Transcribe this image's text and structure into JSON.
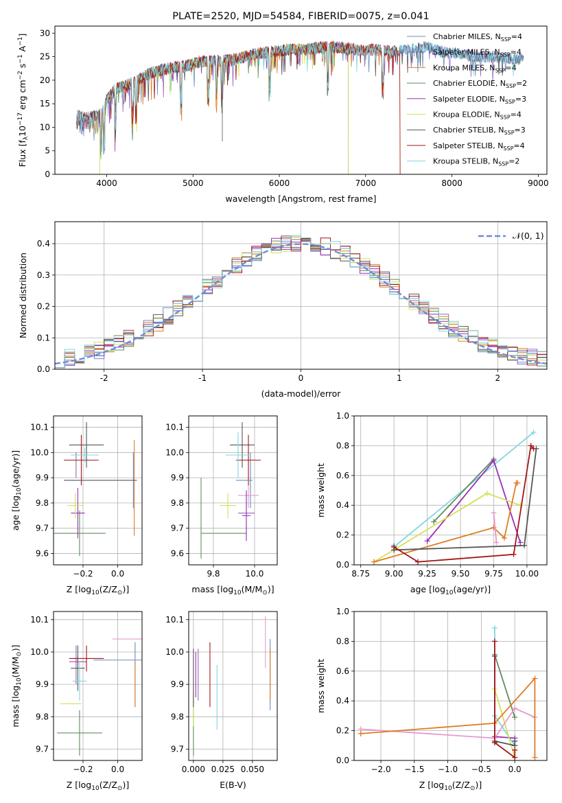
{
  "colors": [
    "#6b8cbf",
    "#9467bd",
    "#e07b22",
    "#5e8e5e",
    "#9a2fb5",
    "#d4e157",
    "#555555",
    "#a31515",
    "#7fd6e0"
  ],
  "chart_data": [
    {
      "id": "spectrum",
      "type": "line",
      "title": "PLATE=2520, MJD=54584, FIBERID=0075, z=0.041",
      "xlabel": "wavelength [Angstrom, rest frame]",
      "ylabel_parts": [
        "Flux [f",
        "λ",
        "10",
        "−17",
        " erg cm",
        "−2",
        " s",
        "−1",
        " A",
        "−1",
        "]"
      ],
      "xlim": [
        3400,
        9100
      ],
      "ylim": [
        0,
        31.5
      ],
      "xticks": [
        4000,
        5000,
        6000,
        7000,
        8000,
        9000
      ],
      "yticks": [
        0,
        5,
        10,
        15,
        20,
        25,
        30
      ],
      "grid": false,
      "legend_position": "top-right",
      "legend": [
        {
          "main": "Chabrier MILES, N",
          "sub": "SSP",
          "tail": "=4"
        },
        {
          "main": "Salpeter MILES, N",
          "sub": "SSP",
          "tail": "=4"
        },
        {
          "main": "Kroupa MILES, N",
          "sub": "SSP",
          "tail": "=4"
        },
        {
          "main": "Chabrier ELODIE, N",
          "sub": "SSP",
          "tail": "=2"
        },
        {
          "main": "Salpeter ELODIE, N",
          "sub": "SSP",
          "tail": "=3"
        },
        {
          "main": "Kroupa ELODIE, N",
          "sub": "SSP",
          "tail": "=4"
        },
        {
          "main": "Chabrier STELIB, N",
          "sub": "SSP",
          "tail": "=3"
        },
        {
          "main": "Salpeter STELIB, N",
          "sub": "SSP",
          "tail": "=4"
        },
        {
          "main": "Kroupa STELIB, N",
          "sub": "SSP",
          "tail": "=2"
        }
      ],
      "continuum_x": [
        3650,
        3800,
        3950,
        4000,
        4100,
        4300,
        4500,
        4700,
        4900,
        5100,
        5300,
        5500,
        5700,
        5900,
        6100,
        6300,
        6500,
        6700,
        6900,
        7100,
        7300,
        7500,
        7700,
        7900,
        8100,
        8300,
        8500,
        8700,
        8830
      ],
      "continuum_y": [
        12.5,
        12,
        13,
        16,
        18,
        19.5,
        21.5,
        22.5,
        23,
        24,
        24,
        24.5,
        25.5,
        26,
        26.5,
        26.5,
        27,
        27,
        26.5,
        26.5,
        26,
        26.5,
        27,
        26,
        25.5,
        25,
        25,
        24.5,
        24.5
      ],
      "series_ranges": [
        [
          3650,
          8830
        ],
        [
          3650,
          8830
        ],
        [
          3650,
          7400
        ],
        [
          3900,
          6800
        ],
        [
          3900,
          6800
        ],
        [
          3900,
          6800
        ],
        [
          3650,
          8830
        ],
        [
          3650,
          7400
        ],
        [
          3650,
          8830
        ]
      ]
    },
    {
      "id": "residuals",
      "type": "histogram",
      "xlabel": "(data-model)/error",
      "ylabel": "Normed distribution",
      "xlim": [
        -2.5,
        2.5
      ],
      "ylim": [
        0,
        0.47
      ],
      "xticks": [
        -2,
        -1,
        0,
        1,
        2
      ],
      "yticks": [
        0.0,
        0.1,
        0.2,
        0.3,
        0.4
      ],
      "grid": true,
      "legend_position": "top-right",
      "legend_label": "𝒩(0, 1)",
      "bin_width": 0.1,
      "bin_start": -2.5,
      "reference_curve": {
        "name": "𝒩(0, 1)",
        "mean": 0,
        "sigma": 1,
        "color": "#6b8cd6"
      }
    },
    {
      "id": "age-vs-Z",
      "type": "errorbar",
      "xlabel": "Z [log10(Z/Z⊙)]",
      "ylabel": "age  [log10(age/yr)]",
      "xlim": [
        -0.37,
        0.14
      ],
      "ylim": [
        9.555,
        10.145
      ],
      "xticks": [
        -0.2,
        0.0
      ],
      "xticklabels": [
        "−0.2",
        "0.0"
      ],
      "yticks": [
        9.6,
        9.7,
        9.8,
        9.9,
        10.0,
        10.1
      ],
      "grid": true,
      "points": [
        {
          "x": 0.09,
          "xerr": 0.0,
          "y": 9.89,
          "yerr": 0.11
        },
        {
          "x": -0.24,
          "xerr": 0.0,
          "y": 9.95,
          "yerr": 0.05
        },
        {
          "x": 0.095,
          "xerr": 0.0,
          "y": 9.86,
          "yerr": 0.19
        },
        {
          "x": -0.22,
          "xerr": 0.15,
          "y": 9.68,
          "yerr": 0.09
        },
        {
          "x": -0.23,
          "xerr": 0.04,
          "y": 9.76,
          "yerr": 0.1
        },
        {
          "x": -0.245,
          "xerr": 0.045,
          "y": 9.79,
          "yerr": 0.05
        },
        {
          "x": -0.18,
          "xerr": 0.1,
          "y": 10.03,
          "yerr": 0.09
        },
        {
          "x": -0.21,
          "xerr": 0.1,
          "y": 9.97,
          "yerr": 0.1
        },
        {
          "x": -0.19,
          "xerr": 0.08,
          "y": 9.99,
          "yerr": 0.03
        },
        {
          "x": -0.1,
          "xerr": 0.21,
          "y": 9.89,
          "yerr": 0.0
        }
      ],
      "point_colors": [
        "#6b8cbf",
        "#9467bd",
        "#e07b22",
        "#5e8e5e",
        "#9a2fb5",
        "#d4e157",
        "#555555",
        "#a31515",
        "#7fd6e0",
        "#555555"
      ]
    },
    {
      "id": "age-vs-mass",
      "type": "errorbar",
      "xlabel": "mass [log10(M/M⊙)]",
      "ylabel": "",
      "xlim": [
        9.68,
        10.11
      ],
      "ylim": [
        9.555,
        10.145
      ],
      "xticks": [
        9.8,
        10.0
      ],
      "xticklabels": [
        "9.8",
        "10.0"
      ],
      "yticks": [
        9.6,
        9.7,
        9.8,
        9.9,
        10.0,
        10.1
      ],
      "grid": true,
      "points": [
        {
          "x": 9.98,
          "xerr": 0.0,
          "y": 9.89,
          "yerr": 0.11
        },
        {
          "x": 9.96,
          "xerr": 0.04,
          "y": 9.76,
          "yerr": 0.08
        },
        {
          "x": 9.97,
          "xerr": 0.05,
          "y": 9.83,
          "yerr": 0.05
        },
        {
          "x": 9.85,
          "xerr": 0.11,
          "y": 9.68,
          "yerr": 0.0
        },
        {
          "x": 9.96,
          "xerr": 0.02,
          "y": 9.75,
          "yerr": 0.1
        },
        {
          "x": 9.87,
          "xerr": 0.04,
          "y": 9.79,
          "yerr": 0.05
        },
        {
          "x": 9.94,
          "xerr": 0.06,
          "y": 10.03,
          "yerr": 0.09
        },
        {
          "x": 9.97,
          "xerr": 0.06,
          "y": 9.97,
          "yerr": 0.1
        },
        {
          "x": 9.92,
          "xerr": 0.06,
          "y": 9.99,
          "yerr": 0.09
        },
        {
          "x": 9.95,
          "xerr": 0.04,
          "y": 9.89,
          "yerr": 0.0
        },
        {
          "x": 9.74,
          "xerr": 0.0,
          "y": 9.74,
          "yerr": 0.16
        }
      ],
      "point_colors": [
        "#6b8cbf",
        "#9467bd",
        "#e59acb",
        "#5e8e5e",
        "#9a2fb5",
        "#d4e157",
        "#555555",
        "#a31515",
        "#7fd6e0",
        "#6b8cbf",
        "#5e8e5e"
      ]
    },
    {
      "id": "weight-vs-age",
      "type": "line",
      "xlabel": "age  [log10(age/yr)]",
      "ylabel": "mass weight",
      "xlim": [
        8.7,
        10.15
      ],
      "ylim": [
        0,
        1.0
      ],
      "xticks": [
        8.75,
        9.0,
        9.25,
        9.5,
        9.75,
        10.0
      ],
      "xticklabels": [
        "8.75",
        "9.00",
        "9.25",
        "9.50",
        "9.75",
        "10.00"
      ],
      "yticks": [
        0.0,
        0.2,
        0.4,
        0.6,
        0.8,
        1.0
      ],
      "grid": true,
      "series": [
        {
          "color": "#6b8cbf",
          "x": [
            9.0,
            9.0
          ],
          "y": [
            0.13,
            0.1
          ]
        },
        {
          "color": "#7fd6e0",
          "x": [
            9.0,
            10.05
          ],
          "y": [
            0.12,
            0.89
          ]
        },
        {
          "color": "#5e8e5e",
          "x": [
            9.3,
            9.75
          ],
          "y": [
            0.29,
            0.71
          ]
        },
        {
          "color": "#9a2fb5",
          "x": [
            9.25,
            9.75,
            9.95
          ],
          "y": [
            0.16,
            0.7,
            0.15
          ]
        },
        {
          "color": "#d4e157",
          "x": [
            8.85,
            9.7,
            9.95
          ],
          "y": [
            0.02,
            0.48,
            0.4
          ]
        },
        {
          "color": "#e07b22",
          "x": [
            8.85,
            9.75,
            9.83,
            9.92,
            9.93
          ],
          "y": [
            0.02,
            0.25,
            0.18,
            0.55,
            0.55
          ]
        },
        {
          "color": "#e59acb",
          "x": [
            9.75,
            9.77
          ],
          "y": [
            0.35,
            0.15
          ]
        },
        {
          "color": "#555555",
          "x": [
            9.0,
            9.98,
            10.07
          ],
          "y": [
            0.1,
            0.13,
            0.78
          ]
        },
        {
          "color": "#a31515",
          "x": [
            9.0,
            9.18,
            9.9,
            10.03,
            10.05
          ],
          "y": [
            0.12,
            0.02,
            0.07,
            0.8,
            0.78
          ]
        }
      ]
    },
    {
      "id": "mass-vs-Z",
      "type": "errorbar",
      "xlabel": "Z [log10(Z/Z⊙)]",
      "ylabel": "mass [log10(M/M⊙)]",
      "xlim": [
        -0.37,
        0.14
      ],
      "ylim": [
        9.665,
        10.125
      ],
      "xticks": [
        -0.2,
        0.0
      ],
      "xticklabels": [
        "−0.2",
        "0.0"
      ],
      "yticks": [
        9.7,
        9.8,
        9.9,
        10.0,
        10.1
      ],
      "grid": true,
      "points": [
        {
          "x": 0.1,
          "xerr": 0.0,
          "y": 9.93,
          "yerr": 0.1
        },
        {
          "x": -0.24,
          "xerr": 0.0,
          "y": 9.96,
          "yerr": 0.06
        },
        {
          "x": 0.1,
          "xerr": 0.0,
          "y": 9.9,
          "yerr": 0.07
        },
        {
          "x": -0.22,
          "xerr": 0.13,
          "y": 9.75,
          "yerr": 0.07
        },
        {
          "x": -0.23,
          "xerr": 0.05,
          "y": 9.97,
          "yerr": 0.02
        },
        {
          "x": -0.27,
          "xerr": 0.06,
          "y": 9.84,
          "yerr": 0.0
        },
        {
          "x": -0.23,
          "xerr": 0.04,
          "y": 9.95,
          "yerr": 0.07
        },
        {
          "x": -0.18,
          "xerr": 0.1,
          "y": 9.98,
          "yerr": 0.04
        },
        {
          "x": -0.22,
          "xerr": 0.04,
          "y": 9.91,
          "yerr": 0.06
        },
        {
          "x": 0.06,
          "xerr": 0.09,
          "y": 10.04,
          "yerr": 0.0
        },
        {
          "x": 0.01,
          "xerr": 0.15,
          "y": 9.975,
          "yerr": 0.0
        }
      ],
      "point_colors": [
        "#6b8cbf",
        "#9467bd",
        "#e07b22",
        "#5e8e5e",
        "#9a2fb5",
        "#d4e157",
        "#555555",
        "#a31515",
        "#7fd6e0",
        "#e59acb",
        "#6b8cbf"
      ]
    },
    {
      "id": "mass-vs-EBV",
      "type": "errorbar",
      "xlabel": "E(B-V)",
      "ylabel": "",
      "xlim": [
        -0.004,
        0.071
      ],
      "ylim": [
        9.665,
        10.125
      ],
      "xticks": [
        0.0,
        0.025,
        0.05
      ],
      "xticklabels": [
        "0.000",
        "0.025",
        "0.050"
      ],
      "yticks": [
        9.7,
        9.8,
        9.9,
        10.0,
        10.1
      ],
      "grid": true,
      "points": [
        {
          "x": 0.065,
          "xerr": 0.0,
          "y": 9.93,
          "yerr": 0.11
        },
        {
          "x": 0.004,
          "xerr": 0.0,
          "y": 9.93,
          "yerr": 0.08
        },
        {
          "x": 0.065,
          "xerr": 0.0,
          "y": 9.93,
          "yerr": 0.08
        },
        {
          "x": 0.0,
          "xerr": 0.0,
          "y": 9.78,
          "yerr": 0.1
        },
        {
          "x": 0.002,
          "xerr": 0.0,
          "y": 9.93,
          "yerr": 0.07
        },
        {
          "x": 0.0,
          "xerr": 0.0,
          "y": 9.84,
          "yerr": 0.07
        },
        {
          "x": 0.0,
          "xerr": 0.0,
          "y": 9.92,
          "yerr": 0.09
        },
        {
          "x": 0.014,
          "xerr": 0.0,
          "y": 9.93,
          "yerr": 0.1
        },
        {
          "x": 0.02,
          "xerr": 0.0,
          "y": 9.86,
          "yerr": 0.1
        },
        {
          "x": 0.061,
          "xerr": 0.0,
          "y": 10.03,
          "yerr": 0.08
        }
      ],
      "point_colors": [
        "#6b8cbf",
        "#9467bd",
        "#e07b22",
        "#5e8e5e",
        "#9a2fb5",
        "#d4e157",
        "#555555",
        "#a31515",
        "#7fd6e0",
        "#e59acb"
      ]
    },
    {
      "id": "weight-vs-Z",
      "type": "line",
      "xlabel": "Z [log10(Z/Z⊙)]",
      "ylabel": "mass weight",
      "xlim": [
        -2.4,
        0.48
      ],
      "ylim": [
        0,
        1.0
      ],
      "xticks": [
        -2.0,
        -1.5,
        -1.0,
        -0.5,
        0.0
      ],
      "xticklabels": [
        "−2.0",
        "−1.5",
        "−1.0",
        "−0.5",
        "0.0"
      ],
      "yticks": [
        0.0,
        0.2,
        0.4,
        0.6,
        0.8,
        1.0
      ],
      "grid": true,
      "series": [
        {
          "color": "#6b8cbf",
          "x": [
            0.0,
            0.0
          ],
          "y": [
            0.13,
            0.1
          ]
        },
        {
          "color": "#7fd6e0",
          "x": [
            -0.3,
            -0.3,
            0.0
          ],
          "y": [
            0.89,
            0.3,
            0.1
          ]
        },
        {
          "color": "#5e8e5e",
          "x": [
            -0.3,
            0.0
          ],
          "y": [
            0.71,
            0.29
          ]
        },
        {
          "color": "#9a2fb5",
          "x": [
            -0.3,
            -0.3,
            0.0
          ],
          "y": [
            0.7,
            0.16,
            0.15
          ]
        },
        {
          "color": "#d4e157",
          "x": [
            -0.3,
            0.0
          ],
          "y": [
            0.48,
            0.02
          ]
        },
        {
          "color": "#e59acb",
          "x": [
            -2.3,
            -0.3,
            0.0,
            0.3
          ],
          "y": [
            0.21,
            0.15,
            0.35,
            0.29
          ]
        },
        {
          "color": "#e07b22",
          "x": [
            -2.3,
            -0.3,
            0.3,
            0.3
          ],
          "y": [
            0.18,
            0.25,
            0.55,
            0.02
          ]
        },
        {
          "color": "#555555",
          "x": [
            -0.3,
            0.0,
            0.0
          ],
          "y": [
            0.13,
            0.1,
            0.13
          ]
        },
        {
          "color": "#a31515",
          "x": [
            -0.3,
            -0.3,
            0.0,
            0.0
          ],
          "y": [
            0.8,
            0.12,
            0.02,
            0.07
          ]
        }
      ]
    }
  ]
}
